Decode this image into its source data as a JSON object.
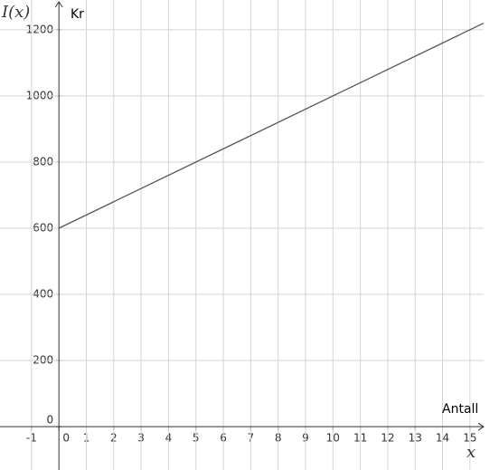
{
  "chart_data": {
    "type": "line",
    "y_label": "I(x)",
    "y_unit": "Kr",
    "x_label": "x",
    "x_unit": "Antall",
    "x": [
      0,
      15.5
    ],
    "values": [
      600,
      1220
    ],
    "color": "#555555",
    "xlim": [
      -2.15,
      15.5
    ],
    "ylim": [
      -131,
      1290
    ],
    "xticks": [
      -1,
      0,
      1,
      2,
      3,
      4,
      5,
      6,
      7,
      8,
      9,
      10,
      11,
      12,
      13,
      14,
      15
    ],
    "yticks": [
      0,
      200,
      400,
      600,
      800,
      1000,
      1200
    ],
    "grid": true
  }
}
